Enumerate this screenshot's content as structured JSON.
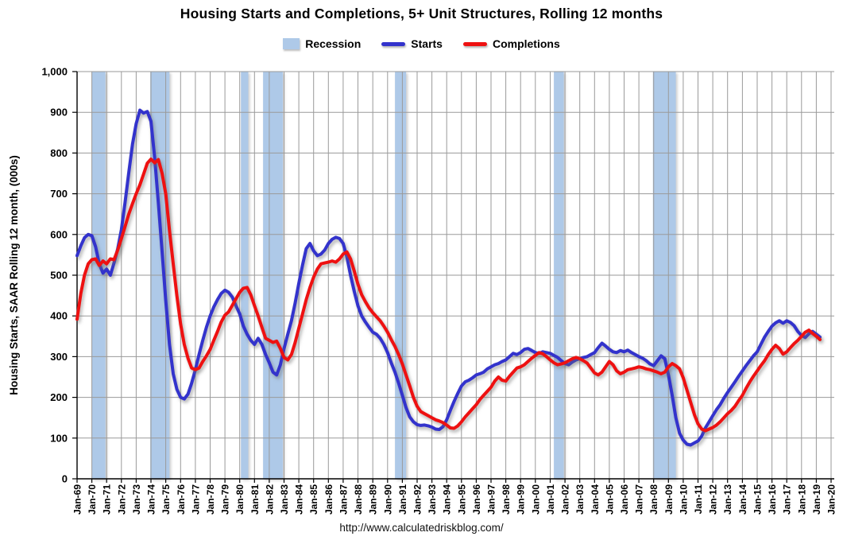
{
  "title": "Housing Starts and Completions, 5+ Unit Structures, Rolling 12 months",
  "footer": {
    "url": "http://www.calculatedriskblog.com/"
  },
  "y_axis": {
    "title": "Housing Starts, SAAR Rolling 12 month, (000s)"
  },
  "legend": {
    "items": [
      {
        "label": "Recession",
        "swatch": "band"
      },
      {
        "label": "Starts",
        "swatch": "line"
      },
      {
        "label": "Completions",
        "swatch": "line"
      }
    ]
  },
  "colors": {
    "starts": "#3333cc",
    "completions": "#ee1111",
    "recession_band": "#aec9e8",
    "gridline": "#9a9a9a",
    "axis": "#000000"
  },
  "chart_data": {
    "type": "line",
    "title": "Housing Starts and Completions, 5+ Unit Structures, Rolling 12 months",
    "xlabel": "",
    "ylabel": "Housing Starts, SAAR Rolling 12 month, (000s)",
    "ylim": [
      0,
      1000
    ],
    "y_tick_step": 100,
    "x_range_years": [
      1969,
      2020
    ],
    "x_start": 1969.0,
    "x_step": 0.25,
    "grid": "both",
    "legend_position": "top",
    "y_tick_labels": [
      "0",
      "100",
      "200",
      "300",
      "400",
      "500",
      "600",
      "700",
      "800",
      "900",
      "1,000"
    ],
    "x_tick_labels": [
      "Jan-69",
      "Jan-70",
      "Jan-71",
      "Jan-72",
      "Jan-73",
      "Jan-74",
      "Jan-75",
      "Jan-76",
      "Jan-77",
      "Jan-78",
      "Jan-79",
      "Jan-80",
      "Jan-81",
      "Jan-82",
      "Jan-83",
      "Jan-84",
      "Jan-85",
      "Jan-86",
      "Jan-87",
      "Jan-88",
      "Jan-89",
      "Jan-90",
      "Jan-91",
      "Jan-92",
      "Jan-93",
      "Jan-94",
      "Jan-95",
      "Jan-96",
      "Jan-97",
      "Jan-98",
      "Jan-99",
      "Jan-00",
      "Jan-01",
      "Jan-02",
      "Jan-03",
      "Jan-04",
      "Jan-05",
      "Jan-06",
      "Jan-07",
      "Jan-08",
      "Jan-09",
      "Jan-10",
      "Jan-11",
      "Jan-12",
      "Jan-13",
      "Jan-14",
      "Jan-15",
      "Jan-16",
      "Jan-17",
      "Jan-18",
      "Jan-19",
      "Jan-20"
    ],
    "recessions": [
      [
        1970.0,
        1970.92
      ],
      [
        1973.95,
        1975.25
      ],
      [
        1980.08,
        1980.58
      ],
      [
        1981.58,
        1982.92
      ],
      [
        1990.5,
        1991.25
      ],
      [
        2001.25,
        2001.92
      ],
      [
        2007.95,
        2009.5
      ]
    ],
    "series": [
      {
        "name": "Starts",
        "values": [
          548,
          572,
          592,
          600,
          597,
          570,
          528,
          505,
          515,
          500,
          530,
          565,
          612,
          680,
          752,
          822,
          872,
          905,
          898,
          902,
          878,
          788,
          678,
          558,
          438,
          330,
          258,
          220,
          200,
          196,
          208,
          235,
          268,
          305,
          340,
          372,
          400,
          422,
          440,
          455,
          463,
          458,
          446,
          425,
          405,
          375,
          355,
          340,
          330,
          345,
          330,
          305,
          285,
          262,
          255,
          280,
          320,
          355,
          388,
          432,
          480,
          525,
          565,
          578,
          560,
          548,
          552,
          562,
          578,
          588,
          593,
          590,
          578,
          545,
          500,
          460,
          425,
          400,
          385,
          372,
          360,
          355,
          345,
          330,
          310,
          285,
          262,
          235,
          205,
          175,
          152,
          140,
          133,
          131,
          132,
          130,
          127,
          122,
          121,
          128,
          145,
          168,
          190,
          210,
          228,
          238,
          242,
          248,
          255,
          258,
          262,
          270,
          275,
          280,
          283,
          288,
          292,
          300,
          308,
          305,
          310,
          318,
          320,
          315,
          310,
          308,
          312,
          310,
          308,
          303,
          298,
          290,
          283,
          280,
          287,
          292,
          295,
          298,
          300,
          305,
          310,
          322,
          333,
          326,
          318,
          312,
          310,
          315,
          312,
          316,
          310,
          305,
          300,
          296,
          290,
          282,
          278,
          290,
          302,
          295,
          255,
          205,
          150,
          112,
          95,
          85,
          83,
          88,
          93,
          105,
          125,
          140,
          155,
          170,
          182,
          198,
          212,
          225,
          238,
          252,
          265,
          278,
          290,
          302,
          312,
          330,
          348,
          362,
          375,
          383,
          388,
          382,
          388,
          384,
          376,
          362,
          352,
          347,
          356,
          362,
          355,
          348
        ]
      },
      {
        "name": "Completions",
        "values": [
          392,
          455,
          500,
          528,
          538,
          540,
          524,
          535,
          528,
          540,
          538,
          562,
          590,
          620,
          650,
          676,
          700,
          722,
          748,
          775,
          785,
          776,
          784,
          750,
          700,
          610,
          528,
          450,
          380,
          330,
          296,
          272,
          268,
          272,
          288,
          302,
          318,
          340,
          362,
          385,
          402,
          410,
          426,
          442,
          458,
          468,
          470,
          452,
          425,
          400,
          372,
          345,
          340,
          335,
          338,
          320,
          298,
          292,
          305,
          335,
          370,
          405,
          440,
          470,
          495,
          515,
          528,
          530,
          532,
          535,
          532,
          540,
          552,
          557,
          540,
          510,
          478,
          452,
          435,
          420,
          408,
          398,
          388,
          375,
          360,
          342,
          325,
          305,
          282,
          255,
          228,
          200,
          178,
          165,
          160,
          155,
          150,
          145,
          142,
          138,
          132,
          125,
          124,
          130,
          140,
          152,
          162,
          172,
          182,
          195,
          205,
          215,
          225,
          240,
          250,
          242,
          240,
          252,
          262,
          272,
          275,
          280,
          288,
          296,
          303,
          310,
          307,
          300,
          292,
          285,
          280,
          282,
          285,
          290,
          295,
          298,
          295,
          290,
          284,
          272,
          260,
          255,
          262,
          275,
          288,
          280,
          265,
          258,
          262,
          268,
          270,
          272,
          275,
          273,
          270,
          268,
          265,
          262,
          258,
          262,
          275,
          283,
          278,
          270,
          248,
          218,
          188,
          158,
          135,
          122,
          118,
          122,
          126,
          132,
          140,
          150,
          160,
          168,
          178,
          192,
          205,
          222,
          238,
          252,
          265,
          278,
          290,
          305,
          318,
          328,
          320,
          306,
          312,
          322,
          332,
          340,
          350,
          360,
          365,
          357,
          350,
          342
        ]
      }
    ]
  }
}
